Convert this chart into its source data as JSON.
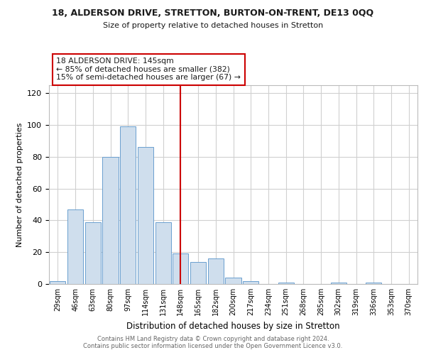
{
  "title": "18, ALDERSON DRIVE, STRETTON, BURTON-ON-TRENT, DE13 0QQ",
  "subtitle": "Size of property relative to detached houses in Stretton",
  "xlabel": "Distribution of detached houses by size in Stretton",
  "ylabel": "Number of detached properties",
  "categories": [
    "29sqm",
    "46sqm",
    "63sqm",
    "80sqm",
    "97sqm",
    "114sqm",
    "131sqm",
    "148sqm",
    "165sqm",
    "182sqm",
    "200sqm",
    "217sqm",
    "234sqm",
    "251sqm",
    "268sqm",
    "285sqm",
    "302sqm",
    "319sqm",
    "336sqm",
    "353sqm",
    "370sqm"
  ],
  "values": [
    2,
    47,
    39,
    80,
    99,
    86,
    39,
    19,
    14,
    16,
    4,
    2,
    0,
    1,
    0,
    0,
    1,
    0,
    1,
    0,
    0
  ],
  "bar_color": "#cfdeed",
  "bar_edge_color": "#6a9fcf",
  "vline_x": 7,
  "vline_color": "#cc0000",
  "annotation_line1": "18 ALDERSON DRIVE: 145sqm",
  "annotation_line2": "← 85% of detached houses are smaller (382)",
  "annotation_line3": "15% of semi-detached houses are larger (67) →",
  "annotation_box_color": "#cc0000",
  "annotation_text_color": "#1a1a1a",
  "ylim": [
    0,
    125
  ],
  "yticks": [
    0,
    20,
    40,
    60,
    80,
    100,
    120
  ],
  "footer_text": "Contains HM Land Registry data © Crown copyright and database right 2024.\nContains public sector information licensed under the Open Government Licence v3.0.",
  "background_color": "#ffffff",
  "grid_color": "#d0d0d0"
}
